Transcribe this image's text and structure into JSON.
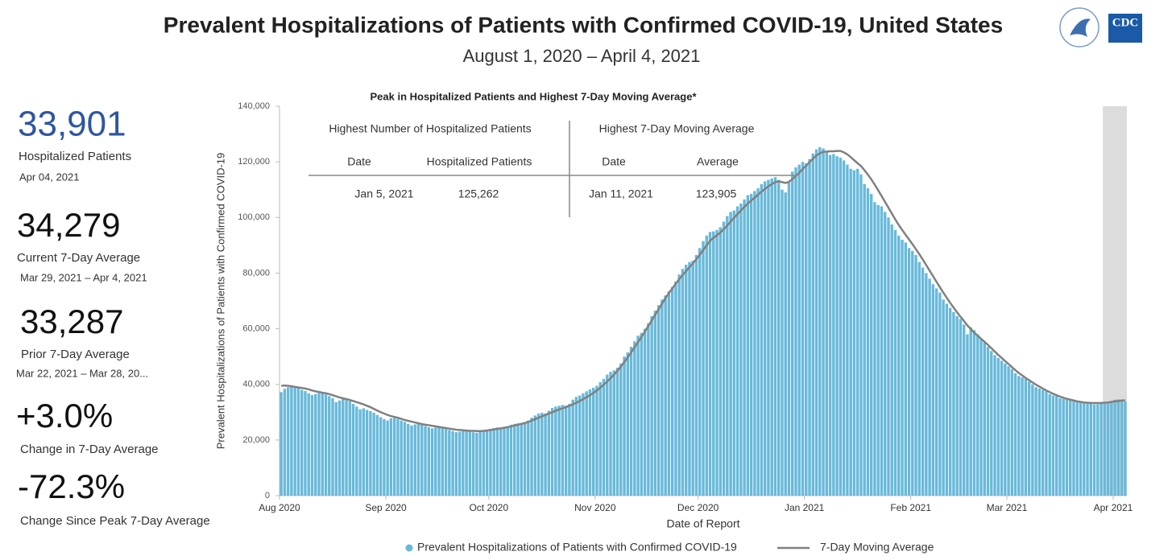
{
  "chart_data": {
    "type": "bar",
    "title": "Prevalent Hospitalizations of Patients with Confirmed COVID-19, United States",
    "subtitle": "August 1, 2020 – April 4, 2021",
    "x_label": "Date of Report",
    "y_label": "Prevalent Hospitalizations of Patients with Confirmed COVID-19",
    "xlim": [
      "2020-08-01",
      "2021-04-04"
    ],
    "xticks": [
      {
        "value": "2020-08-01",
        "label": "Aug 2020"
      },
      {
        "value": "2020-09-01",
        "label": "Sep 2020"
      },
      {
        "value": "2020-10-01",
        "label": "Oct 2020"
      },
      {
        "value": "2020-11-01",
        "label": "Nov 2020"
      },
      {
        "value": "2020-12-01",
        "label": "Dec 2020"
      },
      {
        "value": "2021-01-01",
        "label": "Jan 2021"
      },
      {
        "value": "2021-02-01",
        "label": "Feb 2021"
      },
      {
        "value": "2021-03-01",
        "label": "Mar 2021"
      },
      {
        "value": "2021-04-01",
        "label": "Apr 2021"
      }
    ],
    "ylim": [
      0,
      140000
    ],
    "yticks": [
      0,
      {
        "value": 20000,
        "label": "20,000"
      },
      {
        "value": 40000,
        "label": "40,000"
      },
      {
        "value": 60000,
        "label": "60,000"
      },
      {
        "value": 80000,
        "label": "80,000"
      },
      {
        "value": 100000,
        "label": "100,000"
      },
      {
        "value": 120000,
        "label": "120,000"
      },
      {
        "value": 140000,
        "label": "140,000"
      }
    ],
    "x": [
      "2020-08-01",
      "2020-08-02",
      "2020-08-03",
      "2020-08-04",
      "2020-08-05",
      "2020-08-06",
      "2020-08-07",
      "2020-08-08",
      "2020-08-09",
      "2020-08-10",
      "2020-08-11",
      "2020-08-12",
      "2020-08-13",
      "2020-08-14",
      "2020-08-15",
      "2020-08-16",
      "2020-08-17",
      "2020-08-18",
      "2020-08-19",
      "2020-08-20",
      "2020-08-21",
      "2020-08-22",
      "2020-08-23",
      "2020-08-24",
      "2020-08-25",
      "2020-08-26",
      "2020-08-27",
      "2020-08-28",
      "2020-08-29",
      "2020-08-30",
      "2020-08-31",
      "2020-09-01",
      "2020-09-02",
      "2020-09-03",
      "2020-09-04",
      "2020-09-05",
      "2020-09-06",
      "2020-09-07",
      "2020-09-08",
      "2020-09-09",
      "2020-09-10",
      "2020-09-11",
      "2020-09-12",
      "2020-09-13",
      "2020-09-14",
      "2020-09-15",
      "2020-09-16",
      "2020-09-17",
      "2020-09-18",
      "2020-09-19",
      "2020-09-20",
      "2020-09-21",
      "2020-09-22",
      "2020-09-23",
      "2020-09-24",
      "2020-09-25",
      "2020-09-26",
      "2020-09-27",
      "2020-09-28",
      "2020-09-29",
      "2020-09-30",
      "2020-10-01",
      "2020-10-02",
      "2020-10-03",
      "2020-10-04",
      "2020-10-05",
      "2020-10-06",
      "2020-10-07",
      "2020-10-08",
      "2020-10-09",
      "2020-10-10",
      "2020-10-11",
      "2020-10-12",
      "2020-10-13",
      "2020-10-14",
      "2020-10-15",
      "2020-10-16",
      "2020-10-17",
      "2020-10-18",
      "2020-10-19",
      "2020-10-20",
      "2020-10-21",
      "2020-10-22",
      "2020-10-23",
      "2020-10-24",
      "2020-10-25",
      "2020-10-26",
      "2020-10-27",
      "2020-10-28",
      "2020-10-29",
      "2020-10-30",
      "2020-10-31",
      "2020-11-01",
      "2020-11-02",
      "2020-11-03",
      "2020-11-04",
      "2020-11-05",
      "2020-11-06",
      "2020-11-07",
      "2020-11-08",
      "2020-11-09",
      "2020-11-10",
      "2020-11-11",
      "2020-11-12",
      "2020-11-13",
      "2020-11-14",
      "2020-11-15",
      "2020-11-16",
      "2020-11-17",
      "2020-11-18",
      "2020-11-19",
      "2020-11-20",
      "2020-11-21",
      "2020-11-22",
      "2020-11-23",
      "2020-11-24",
      "2020-11-25",
      "2020-11-26",
      "2020-11-27",
      "2020-11-28",
      "2020-11-29",
      "2020-11-30",
      "2020-12-01",
      "2020-12-02",
      "2020-12-03",
      "2020-12-04",
      "2020-12-05",
      "2020-12-06",
      "2020-12-07",
      "2020-12-08",
      "2020-12-09",
      "2020-12-10",
      "2020-12-11",
      "2020-12-12",
      "2020-12-13",
      "2020-12-14",
      "2020-12-15",
      "2020-12-16",
      "2020-12-17",
      "2020-12-18",
      "2020-12-19",
      "2020-12-20",
      "2020-12-21",
      "2020-12-22",
      "2020-12-23",
      "2020-12-24",
      "2020-12-25",
      "2020-12-26",
      "2020-12-27",
      "2020-12-28",
      "2020-12-29",
      "2020-12-30",
      "2020-12-31",
      "2021-01-01",
      "2021-01-02",
      "2021-01-03",
      "2021-01-04",
      "2021-01-05",
      "2021-01-06",
      "2021-01-07",
      "2021-01-08",
      "2021-01-09",
      "2021-01-10",
      "2021-01-11",
      "2021-01-12",
      "2021-01-13",
      "2021-01-14",
      "2021-01-15",
      "2021-01-16",
      "2021-01-17",
      "2021-01-18",
      "2021-01-19",
      "2021-01-20",
      "2021-01-21",
      "2021-01-22",
      "2021-01-23",
      "2021-01-24",
      "2021-01-25",
      "2021-01-26",
      "2021-01-27",
      "2021-01-28",
      "2021-01-29",
      "2021-01-30",
      "2021-01-31",
      "2021-02-01",
      "2021-02-02",
      "2021-02-03",
      "2021-02-04",
      "2021-02-05",
      "2021-02-06",
      "2021-02-07",
      "2021-02-08",
      "2021-02-09",
      "2021-02-10",
      "2021-02-11",
      "2021-02-12",
      "2021-02-13",
      "2021-02-14",
      "2021-02-15",
      "2021-02-16",
      "2021-02-17",
      "2021-02-18",
      "2021-02-19",
      "2021-02-20",
      "2021-02-21",
      "2021-02-22",
      "2021-02-23",
      "2021-02-24",
      "2021-02-25",
      "2021-02-26",
      "2021-02-27",
      "2021-02-28",
      "2021-03-01",
      "2021-03-02",
      "2021-03-03",
      "2021-03-04",
      "2021-03-05",
      "2021-03-06",
      "2021-03-07",
      "2021-03-08",
      "2021-03-09",
      "2021-03-10",
      "2021-03-11",
      "2021-03-12",
      "2021-03-13",
      "2021-03-14",
      "2021-03-15",
      "2021-03-16",
      "2021-03-17",
      "2021-03-18",
      "2021-03-19",
      "2021-03-20",
      "2021-03-21",
      "2021-03-22",
      "2021-03-23",
      "2021-03-24",
      "2021-03-25",
      "2021-03-26",
      "2021-03-27",
      "2021-03-28",
      "2021-03-29",
      "2021-03-30",
      "2021-03-31",
      "2021-04-01",
      "2021-04-02",
      "2021-04-03",
      "2021-04-04"
    ],
    "series": [
      {
        "name": "Prevalent Hospitalizations of Patients with Confirmed COVID-19",
        "type": "bar",
        "color": "#68b9da",
        "values": [
          37200,
          38400,
          39000,
          39300,
          39000,
          38600,
          38000,
          37600,
          36800,
          36200,
          36500,
          37000,
          36800,
          36400,
          35800,
          35000,
          33600,
          34200,
          35000,
          34800,
          34000,
          33000,
          32000,
          31000,
          31400,
          30800,
          30400,
          29800,
          29000,
          28200,
          27500,
          27000,
          27800,
          28000,
          27600,
          27000,
          26500,
          25800,
          25200,
          25600,
          25900,
          25400,
          25000,
          24600,
          24200,
          24500,
          24800,
          24400,
          24000,
          23600,
          23200,
          22800,
          23000,
          23400,
          23200,
          23000,
          22800,
          22600,
          22900,
          23400,
          23800,
          24000,
          24300,
          24500,
          24200,
          24400,
          25000,
          25500,
          25800,
          26000,
          25800,
          26200,
          27000,
          28000,
          28800,
          29500,
          29800,
          29600,
          30500,
          31500,
          32000,
          32300,
          32600,
          32400,
          33000,
          34500,
          35500,
          36000,
          36800,
          37500,
          38200,
          38800,
          39500,
          40800,
          42000,
          43500,
          44500,
          45000,
          46000,
          47500,
          50000,
          51500,
          53500,
          55500,
          57500,
          58500,
          60000,
          62000,
          64500,
          66500,
          68500,
          70500,
          72000,
          73500,
          75000,
          77000,
          79500,
          81500,
          83000,
          84000,
          84500,
          86500,
          89000,
          91500,
          93500,
          94800,
          95000,
          95500,
          96500,
          98500,
          100500,
          102000,
          102500,
          104000,
          105000,
          106500,
          108000,
          108500,
          109500,
          110500,
          112000,
          113000,
          113500,
          114000,
          114500,
          113500,
          110000,
          109000,
          112500,
          116500,
          118000,
          119000,
          120000,
          119500,
          121000,
          123000,
          124500,
          125262,
          124800,
          123500,
          122500,
          122800,
          122000,
          121500,
          120500,
          119000,
          117500,
          117000,
          117500,
          115500,
          112000,
          110500,
          108500,
          105500,
          104500,
          104000,
          102000,
          100000,
          97500,
          95500,
          93500,
          92000,
          91000,
          89000,
          88000,
          86500,
          84000,
          82000,
          80000,
          78000,
          76000,
          74500,
          73000,
          70500,
          69000,
          67500,
          66000,
          64500,
          63500,
          61500,
          58000,
          60500,
          59500,
          58000,
          56500,
          55000,
          53500,
          52000,
          50500,
          49500,
          48500,
          47500,
          46500,
          45500,
          44000,
          43000,
          42500,
          42000,
          41000,
          40000,
          39000,
          38500,
          38000,
          37500,
          36500,
          36000,
          35800,
          35000,
          34800,
          34500,
          34200,
          34000,
          33800,
          33500,
          33300,
          33200,
          33000,
          32800,
          32900,
          33000,
          33200,
          33500,
          33800,
          34500,
          34600,
          34200,
          33901
        ]
      },
      {
        "name": "7-Day Moving Average",
        "type": "line",
        "color": "#808080",
        "values": [
          39500,
          39600,
          39500,
          39300,
          39100,
          38900,
          38700,
          38500,
          38200,
          37800,
          37500,
          37300,
          37000,
          36800,
          36500,
          36100,
          35700,
          35300,
          35000,
          34700,
          34400,
          34000,
          33600,
          33200,
          32800,
          32300,
          31800,
          31200,
          30600,
          30000,
          29500,
          29000,
          28600,
          28300,
          28000,
          27600,
          27200,
          26900,
          26600,
          26300,
          26000,
          25700,
          25500,
          25300,
          25100,
          24900,
          24700,
          24500,
          24300,
          24100,
          23900,
          23700,
          23600,
          23500,
          23400,
          23300,
          23300,
          23200,
          23200,
          23300,
          23400,
          23600,
          23800,
          24000,
          24200,
          24400,
          24600,
          24900,
          25200,
          25500,
          25800,
          26100,
          26500,
          27000,
          27500,
          28000,
          28500,
          29000,
          29500,
          30000,
          30500,
          31000,
          31400,
          31800,
          32300,
          32800,
          33400,
          34000,
          34700,
          35400,
          36100,
          36900,
          37800,
          38800,
          39900,
          41000,
          42200,
          43500,
          44900,
          46400,
          48000,
          49700,
          51500,
          53300,
          55200,
          57100,
          59000,
          61000,
          63000,
          65000,
          67000,
          69000,
          71000,
          72800,
          74500,
          76200,
          77800,
          79300,
          80700,
          82100,
          83500,
          85000,
          86600,
          88300,
          90000,
          91600,
          92700,
          93600,
          94600,
          95800,
          97100,
          98500,
          99900,
          101200,
          102500,
          103800,
          105000,
          106100,
          107100,
          108200,
          109300,
          110300,
          111200,
          112000,
          112700,
          113000,
          112700,
          112400,
          112800,
          113800,
          114900,
          116100,
          117400,
          118600,
          119900,
          121100,
          122300,
          123100,
          123600,
          123700,
          123800,
          123800,
          123900,
          123905,
          123400,
          122700,
          121700,
          120600,
          119500,
          118500,
          117000,
          115400,
          113700,
          111800,
          109800,
          107700,
          105600,
          103500,
          101400,
          99300,
          97300,
          95500,
          93800,
          92100,
          90400,
          88600,
          86800,
          84900,
          82900,
          80900,
          78900,
          76900,
          74900,
          73000,
          71100,
          69300,
          67600,
          65900,
          64300,
          62800,
          61200,
          59900,
          58600,
          57500,
          56400,
          55300,
          54200,
          53000,
          51800,
          50600,
          49500,
          48400,
          47300,
          46200,
          45100,
          44100,
          43200,
          42300,
          41500,
          40700,
          39900,
          39200,
          38500,
          37800,
          37200,
          36600,
          36100,
          35600,
          35200,
          34800,
          34500,
          34200,
          33900,
          33700,
          33500,
          33400,
          33300,
          33300,
          33300,
          33287,
          33400,
          33500,
          33700,
          33900,
          34000,
          34200,
          34279
        ]
      }
    ]
  },
  "summary": [
    {
      "value": "33,901",
      "label": "Hospitalized Patients",
      "date": "Apr 04, 2021"
    },
    {
      "value": "34,279",
      "label": "Current 7-Day Average",
      "date": "Mar 29, 2021 – Apr 4, 2021"
    },
    {
      "value": "33,287",
      "label": "Prior 7-Day Average",
      "date": "Mar 22, 2021 – Mar 28, 20..."
    },
    {
      "value": "+3.0%",
      "label": "Change in 7-Day Average"
    },
    {
      "value": "-72.3%",
      "label": "Change Since Peak 7-Day Average"
    }
  ],
  "peak_table": {
    "title": "Peak in Hospitalized Patients and Highest 7-Day Moving Average*",
    "groups": [
      {
        "title": "Highest Number of Hospitalized Patients",
        "columns": [
          "Date",
          "Hospitalized Patients"
        ],
        "row": [
          "Jan 5, 2021",
          "125,262"
        ]
      },
      {
        "title": "Highest 7-Day Moving Average",
        "columns": [
          "Date",
          "Average"
        ],
        "row": [
          "Jan 11, 2021",
          "123,905"
        ]
      }
    ]
  },
  "logo": {
    "text": "CDC"
  }
}
